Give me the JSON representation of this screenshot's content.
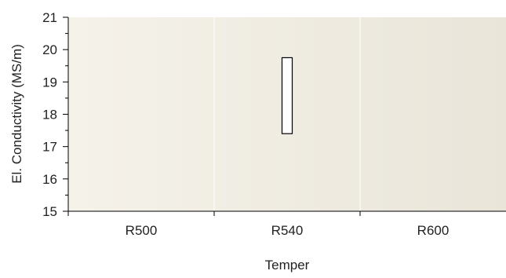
{
  "chart_data": {
    "type": "range-bar",
    "xlabel": "Temper",
    "ylabel": "El. Conductivity (MS/m)",
    "categories": [
      "R500",
      "R540",
      "R600"
    ],
    "ylim": [
      15,
      21
    ],
    "yticks": [
      15,
      16,
      17,
      18,
      19,
      20,
      21
    ],
    "y_minor_step": 0.5,
    "grid": true,
    "bars": [
      {
        "category": "R540",
        "min": 17.4,
        "max": 19.75
      }
    ],
    "colors": {
      "plot_bg_left": "#f5f2ea",
      "plot_bg_right": "#e9e5d9",
      "bar_fill": "#ffffff",
      "bar_stroke": "#000000",
      "grid": "#ffffff",
      "axis": "#000000",
      "text": "#222222"
    }
  }
}
